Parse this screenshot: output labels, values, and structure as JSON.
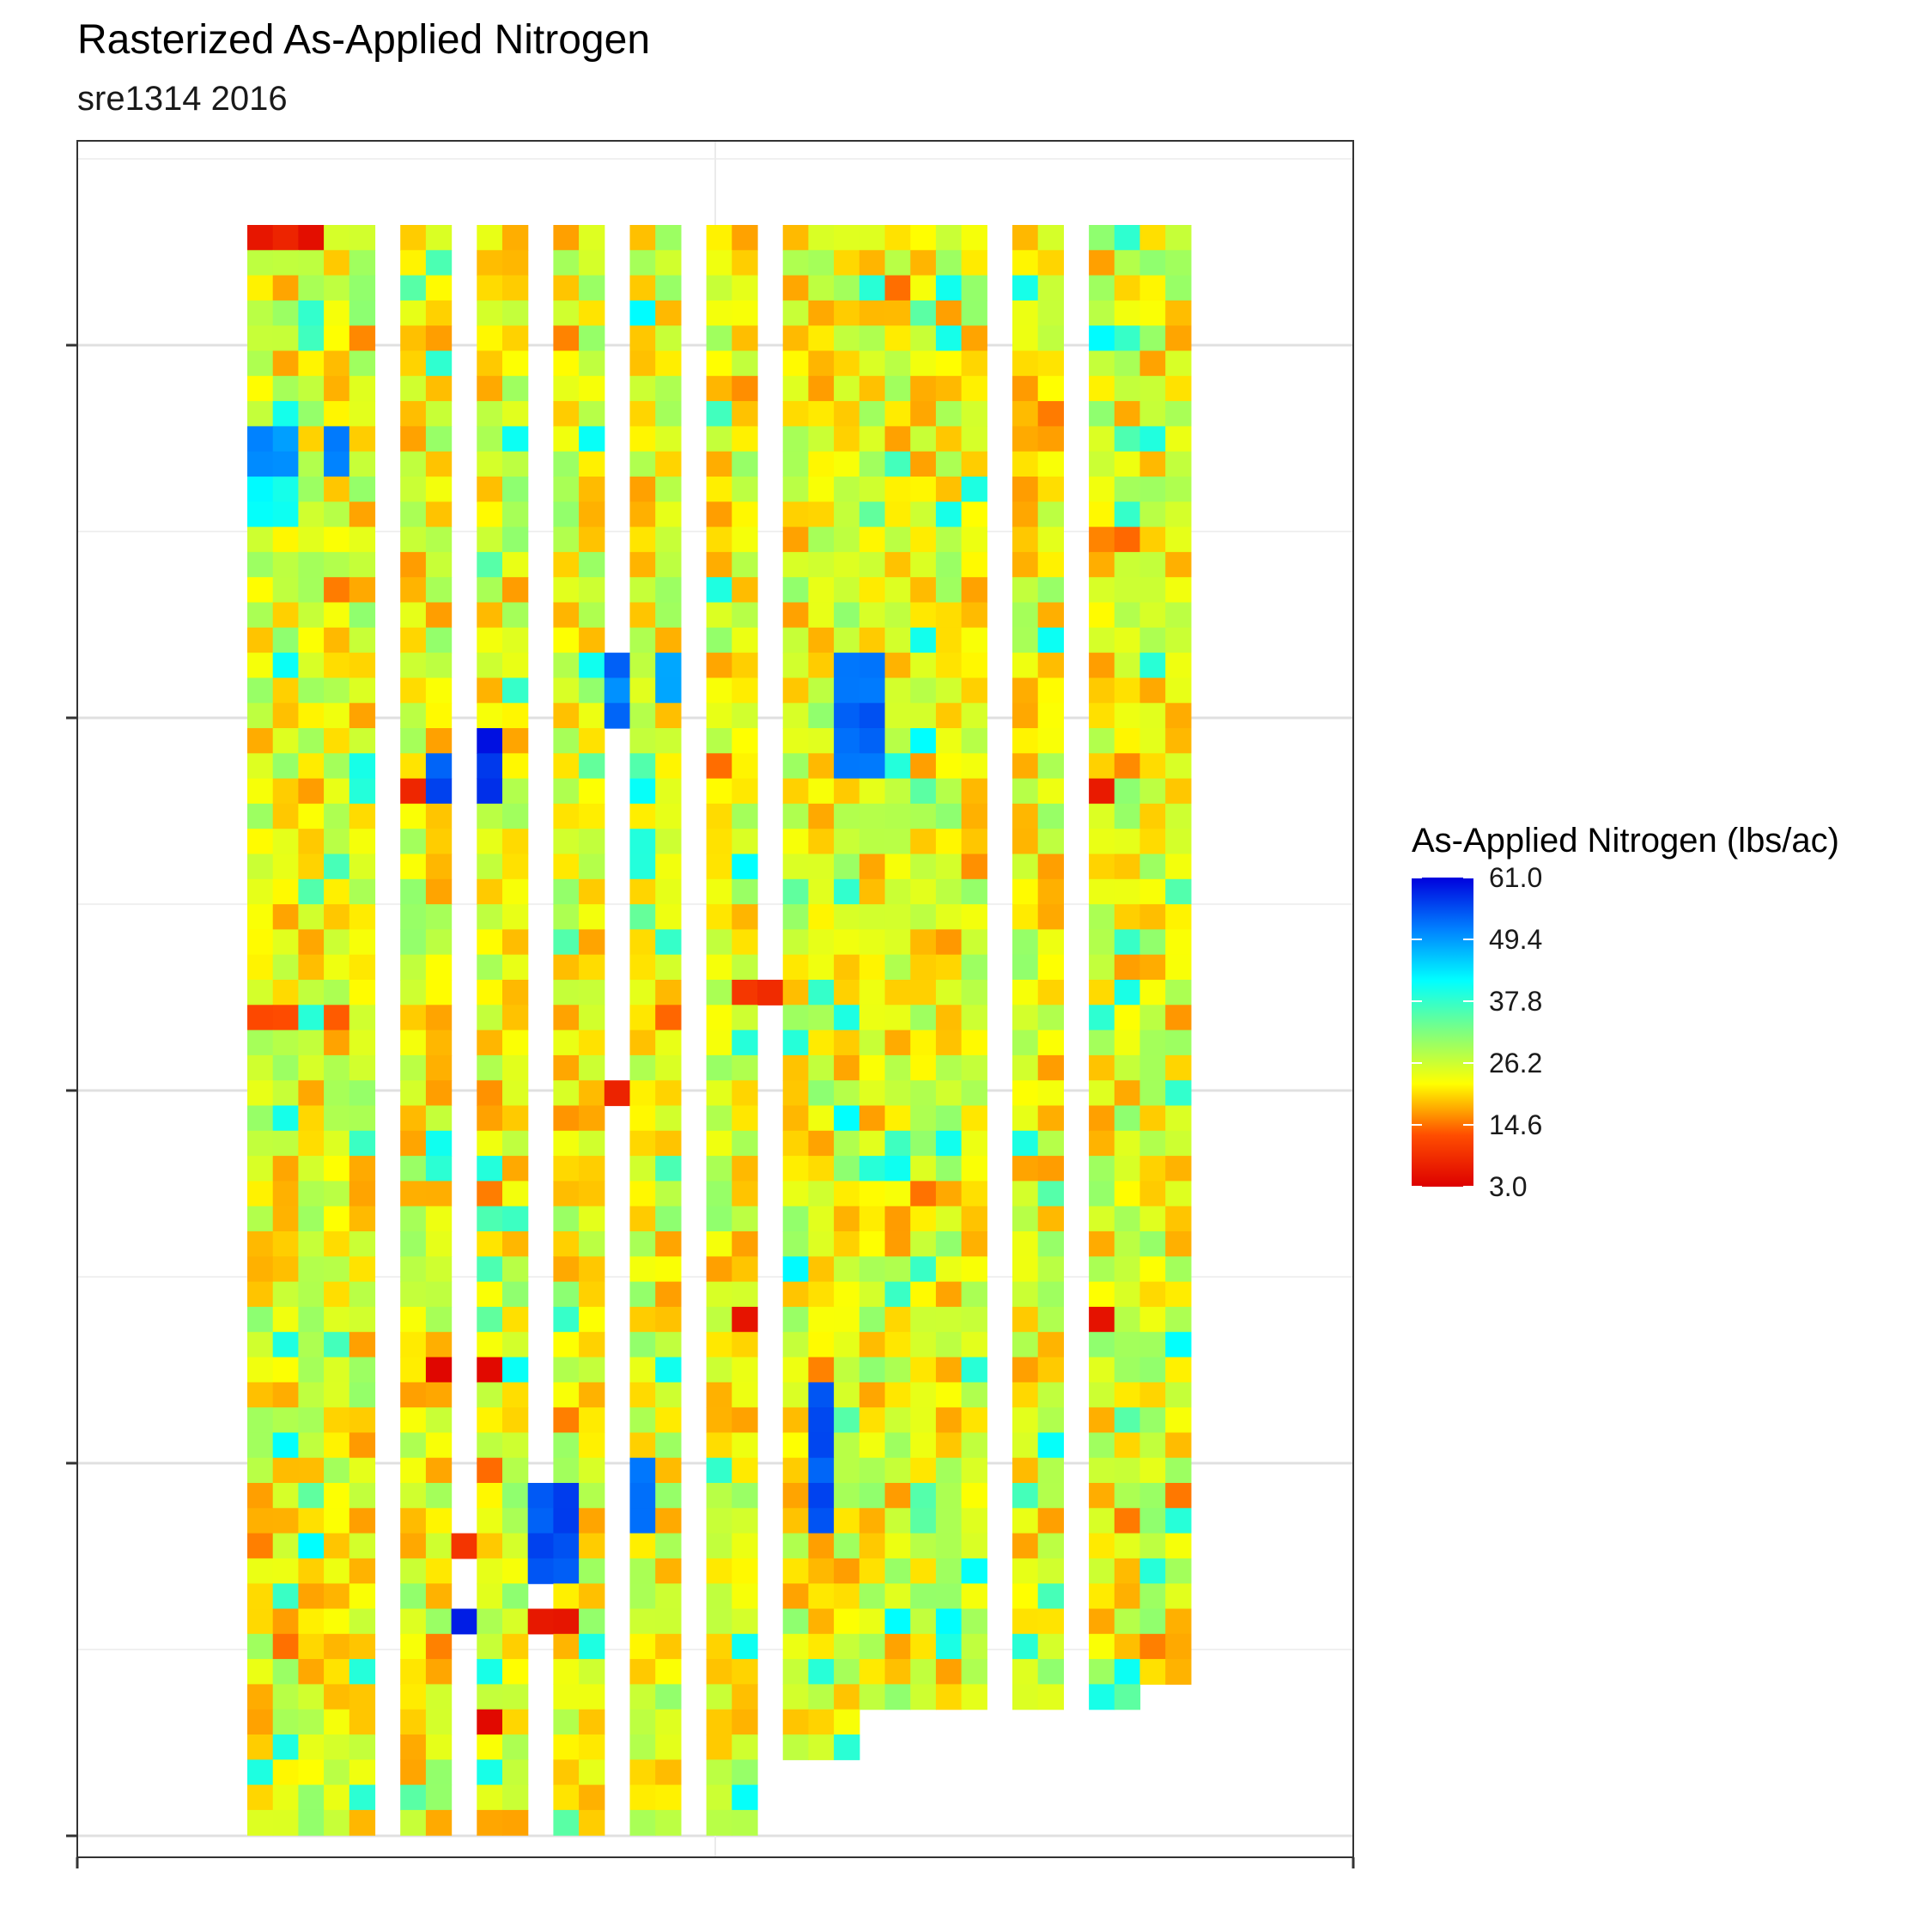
{
  "chart_data": {
    "type": "heatmap",
    "title": "Rasterized As-Applied Nitrogen",
    "subtitle": "sre1314 2016",
    "xlabel": "",
    "ylabel": "",
    "x_tick_labels": [],
    "y_tick_labels": [],
    "grid": true,
    "legend": {
      "title": "As-Applied Nitrogen (lbs/ac)",
      "position": "right",
      "min": 3.0,
      "max": 61.0,
      "ticks": [
        61.0,
        49.4,
        37.8,
        26.2,
        14.6,
        3.0
      ],
      "tick_labels": [
        "61.0",
        "49.4",
        "37.8",
        "26.2",
        "14.6",
        "3.0"
      ],
      "colors": [
        "#dd0000",
        "#ff4d00",
        "#ffff00",
        "#7fff7f",
        "#00ffff",
        "#0080ff",
        "#0000dd"
      ]
    },
    "grid_cols": 38,
    "grid_rows": 64,
    "typical_value": 24,
    "column_passes": [
      {
        "cols": [
          0,
          1,
          2
        ],
        "row_start": 0,
        "row_end": 63
      },
      {
        "cols": [
          3,
          4
        ],
        "row_start": 0,
        "row_end": 63
      },
      {
        "cols": [
          6,
          7
        ],
        "row_start": 0,
        "row_end": 63
      },
      {
        "cols": [
          9,
          10
        ],
        "row_start": 0,
        "row_end": 63
      },
      {
        "cols": [
          12,
          13
        ],
        "row_start": 0,
        "row_end": 63
      },
      {
        "cols": [
          15,
          16
        ],
        "row_start": 0,
        "row_end": 63
      },
      {
        "cols": [
          18,
          19
        ],
        "row_start": 0,
        "row_end": 63
      },
      {
        "cols": [
          21,
          22,
          23
        ],
        "row_start": 0,
        "row_end": 60
      },
      {
        "cols": [
          24,
          25,
          26
        ],
        "row_start": 0,
        "row_end": 58
      },
      {
        "cols": [
          27,
          28
        ],
        "row_start": 0,
        "row_end": 58
      },
      {
        "cols": [
          30,
          31
        ],
        "row_start": 0,
        "row_end": 58
      },
      {
        "cols": [
          33,
          34
        ],
        "row_start": 0,
        "row_end": 58
      },
      {
        "cols": [
          35,
          36
        ],
        "row_start": 0,
        "row_end": 57
      }
    ],
    "blocks": [
      {
        "cols": [
          0,
          2
        ],
        "rows": [
          0,
          0
        ],
        "value": 6
      },
      {
        "cols": [
          0,
          1
        ],
        "rows": [
          8,
          9
        ],
        "value": 50
      },
      {
        "cols": [
          0,
          1
        ],
        "rows": [
          10,
          11
        ],
        "value": 42
      },
      {
        "cols": [
          3,
          3
        ],
        "rows": [
          8,
          9
        ],
        "value": 50
      },
      {
        "cols": [
          0,
          1
        ],
        "rows": [
          31,
          31
        ],
        "value": 12
      },
      {
        "cols": [
          3,
          3
        ],
        "rows": [
          31,
          31
        ],
        "value": 12
      },
      {
        "cols": [
          9,
          9
        ],
        "rows": [
          20,
          22
        ],
        "value": 58
      },
      {
        "cols": [
          7,
          7
        ],
        "rows": [
          21,
          22
        ],
        "value": 55
      },
      {
        "cols": [
          6,
          6
        ],
        "rows": [
          22,
          22
        ],
        "value": 8
      },
      {
        "cols": [
          14,
          14
        ],
        "rows": [
          17,
          19
        ],
        "value": 52
      },
      {
        "cols": [
          16,
          16
        ],
        "rows": [
          17,
          18
        ],
        "value": 48
      },
      {
        "cols": [
          23,
          24
        ],
        "rows": [
          17,
          21
        ],
        "value": 53
      },
      {
        "cols": [
          19,
          20
        ],
        "rows": [
          30,
          30
        ],
        "value": 8
      },
      {
        "cols": [
          14,
          14
        ],
        "rows": [
          34,
          34
        ],
        "value": 7
      },
      {
        "cols": [
          33,
          33
        ],
        "rows": [
          22,
          22
        ],
        "value": 5
      },
      {
        "cols": [
          9,
          9
        ],
        "rows": [
          45,
          45
        ],
        "value": 5
      },
      {
        "cols": [
          7,
          7
        ],
        "rows": [
          45,
          45
        ],
        "value": 5
      },
      {
        "cols": [
          19,
          19
        ],
        "rows": [
          43,
          43
        ],
        "value": 5
      },
      {
        "cols": [
          33,
          33
        ],
        "rows": [
          43,
          43
        ],
        "value": 5
      },
      {
        "cols": [
          22,
          22
        ],
        "rows": [
          46,
          51
        ],
        "value": 54
      },
      {
        "cols": [
          11,
          12
        ],
        "rows": [
          50,
          53
        ],
        "value": 55
      },
      {
        "cols": [
          15,
          15
        ],
        "rows": [
          49,
          51
        ],
        "value": 52
      },
      {
        "cols": [
          8,
          8
        ],
        "rows": [
          55,
          55
        ],
        "value": 58
      },
      {
        "cols": [
          11,
          12
        ],
        "rows": [
          55,
          55
        ],
        "value": 6
      },
      {
        "cols": [
          9,
          9
        ],
        "rows": [
          59,
          59
        ],
        "value": 6
      },
      {
        "cols": [
          8,
          8
        ],
        "rows": [
          52,
          52
        ],
        "value": 10
      }
    ]
  }
}
